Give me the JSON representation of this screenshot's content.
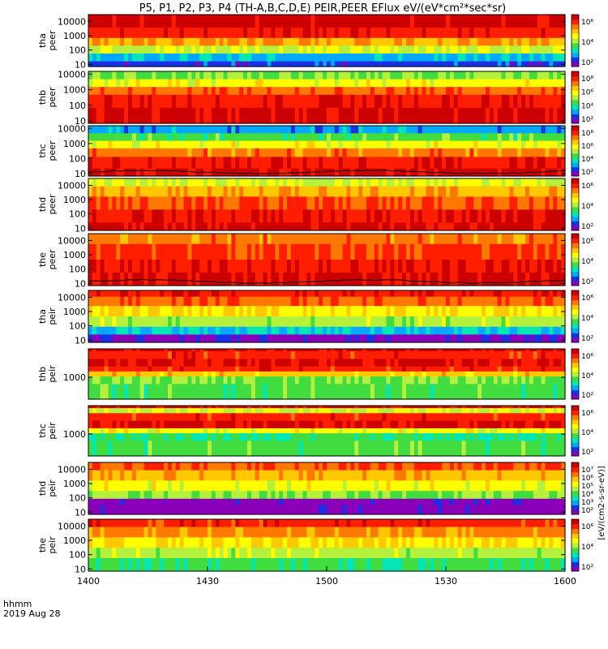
{
  "title": "P5, P1, P2, P3, P4 (TH-A,B,C,D,E) PEIR,PEER EFlux eV/(eV*cm²*sec*sr)",
  "time_axis": {
    "label_line1": "hhmm",
    "label_line2": "2019 Aug 28",
    "ticks": [
      "1400",
      "1430",
      "1500",
      "1530",
      "1600"
    ],
    "range": [
      "14:00",
      "16:00"
    ]
  },
  "colorbar_unit_label": "[eV/(cm2-s-sr-eV)]",
  "colormap": [
    "#8a00b8",
    "#1a30e6",
    "#00a8ff",
    "#00e6b4",
    "#40dc40",
    "#b4f03c",
    "#ffff00",
    "#ffc800",
    "#ff7800",
    "#ff1e00",
    "#cc0000"
  ],
  "chart_data": [
    {
      "type": "heatmap",
      "name": "tha peer",
      "ylabel": "tha\npeer",
      "yscale": "log",
      "ylim": [
        7,
        30000
      ],
      "yticks": [
        "10",
        "100",
        "1000",
        "10000"
      ],
      "colorbar_ticks": [
        "10⁶",
        "10⁴",
        "10²"
      ],
      "band_levels": [
        [
          0.25,
          1.0
        ],
        [
          0.45,
          0.92
        ],
        [
          0.6,
          0.75
        ],
        [
          0.75,
          0.55
        ],
        [
          0.9,
          0.22
        ],
        [
          1.0,
          0.1
        ]
      ],
      "overlay_line": false
    },
    {
      "type": "heatmap",
      "name": "thb peer",
      "ylabel": "thb\npeer",
      "yscale": "log",
      "ylim": [
        7,
        15000
      ],
      "yticks": [
        "10",
        "100",
        "1000",
        "10000"
      ],
      "colorbar_ticks": [
        "10⁸",
        "10⁶",
        "10⁴",
        "10²"
      ],
      "band_levels": [
        [
          0.15,
          0.45
        ],
        [
          0.3,
          0.6
        ],
        [
          0.45,
          0.82
        ],
        [
          0.7,
          0.93
        ],
        [
          1.0,
          0.98
        ]
      ],
      "overlay_line": false
    },
    {
      "type": "heatmap",
      "name": "thc peer",
      "ylabel": "thc\npeer",
      "yscale": "log",
      "ylim": [
        7,
        15000
      ],
      "yticks": [
        "10",
        "100",
        "1000",
        "10000"
      ],
      "colorbar_ticks": [
        "10⁸",
        "10⁶",
        "10⁴",
        "10²"
      ],
      "band_levels": [
        [
          0.15,
          0.2
        ],
        [
          0.3,
          0.4
        ],
        [
          0.45,
          0.6
        ],
        [
          0.62,
          0.8
        ],
        [
          0.85,
          0.92
        ],
        [
          1.0,
          0.98
        ]
      ],
      "overlay_line": true
    },
    {
      "type": "heatmap",
      "name": "thd peer",
      "ylabel": "thd\npeer",
      "yscale": "log",
      "ylim": [
        7,
        30000
      ],
      "yticks": [
        "10",
        "100",
        "1000",
        "10000"
      ],
      "colorbar_ticks": [
        "10⁶",
        "10⁴",
        "10²"
      ],
      "band_levels": [
        [
          0.15,
          0.55
        ],
        [
          0.35,
          0.72
        ],
        [
          0.6,
          0.85
        ],
        [
          0.85,
          0.93
        ],
        [
          1.0,
          0.98
        ]
      ],
      "overlay_line": false
    },
    {
      "type": "heatmap",
      "name": "the peer",
      "ylabel": "the\npeer",
      "yscale": "log",
      "ylim": [
        7,
        30000
      ],
      "yticks": [
        "10",
        "100",
        "1000",
        "10000"
      ],
      "colorbar_ticks": [
        "10⁶",
        "10⁴",
        "10²"
      ],
      "band_levels": [
        [
          0.2,
          0.8
        ],
        [
          0.5,
          0.88
        ],
        [
          0.75,
          0.93
        ],
        [
          1.0,
          0.97
        ]
      ],
      "overlay_line": true
    },
    {
      "type": "heatmap",
      "name": "tha peir",
      "ylabel": "tha\npeir",
      "yscale": "log",
      "ylim": [
        7,
        30000
      ],
      "yticks": [
        "10",
        "100",
        "1000",
        "10000"
      ],
      "colorbar_ticks": [
        "10⁶",
        "10⁴",
        "10²"
      ],
      "band_levels": [
        [
          0.12,
          0.92
        ],
        [
          0.3,
          0.82
        ],
        [
          0.5,
          0.65
        ],
        [
          0.7,
          0.5
        ],
        [
          0.85,
          0.25
        ],
        [
          1.0,
          0.02
        ]
      ],
      "overlay_line": false
    },
    {
      "type": "heatmap",
      "name": "thb peir",
      "ylabel": "thb\npeir",
      "yscale": "log",
      "ylim": [
        100,
        20000
      ],
      "yticks": [
        "1000"
      ],
      "colorbar_ticks": [
        "10⁶",
        "10⁴",
        "10²"
      ],
      "band_levels": [
        [
          0.05,
          0.98
        ],
        [
          0.2,
          0.9
        ],
        [
          0.35,
          0.97
        ],
        [
          0.45,
          0.9
        ],
        [
          0.55,
          0.7
        ],
        [
          0.7,
          0.45
        ],
        [
          1.0,
          0.4
        ]
      ],
      "overlay_line": false
    },
    {
      "type": "heatmap",
      "name": "thc peir",
      "ylabel": "thc\npeir",
      "yscale": "log",
      "ylim": [
        100,
        20000
      ],
      "yticks": [
        "1000"
      ],
      "colorbar_ticks": [
        "10⁶",
        "10⁴",
        "10²"
      ],
      "band_levels": [
        [
          0.05,
          0.98
        ],
        [
          0.15,
          0.55
        ],
        [
          0.3,
          0.9
        ],
        [
          0.45,
          0.97
        ],
        [
          0.55,
          0.6
        ],
        [
          0.7,
          0.35
        ],
        [
          1.0,
          0.4
        ]
      ],
      "overlay_line": false
    },
    {
      "type": "heatmap",
      "name": "thd peir",
      "ylabel": "thd\npeir",
      "yscale": "log",
      "ylim": [
        7,
        30000
      ],
      "yticks": [
        "10",
        "100",
        "1000",
        "10000"
      ],
      "colorbar_ticks": [
        "10⁷",
        "10⁶",
        "10⁵",
        "10⁴",
        "10³",
        "10²"
      ],
      "band_levels": [
        [
          0.15,
          0.85
        ],
        [
          0.35,
          0.72
        ],
        [
          0.55,
          0.6
        ],
        [
          0.7,
          0.45
        ],
        [
          0.82,
          0.0
        ],
        [
          1.0,
          0.0
        ]
      ],
      "overlay_line": false
    },
    {
      "type": "heatmap",
      "name": "the peir",
      "ylabel": "the\npeir",
      "yscale": "log",
      "ylim": [
        7,
        30000
      ],
      "yticks": [
        "10",
        "100",
        "1000",
        "10000"
      ],
      "colorbar_ticks": [
        "10⁶",
        "10⁴",
        "10²"
      ],
      "band_levels": [
        [
          0.15,
          0.9
        ],
        [
          0.35,
          0.78
        ],
        [
          0.55,
          0.65
        ],
        [
          0.75,
          0.5
        ],
        [
          1.0,
          0.38
        ]
      ],
      "overlay_line": false
    }
  ]
}
